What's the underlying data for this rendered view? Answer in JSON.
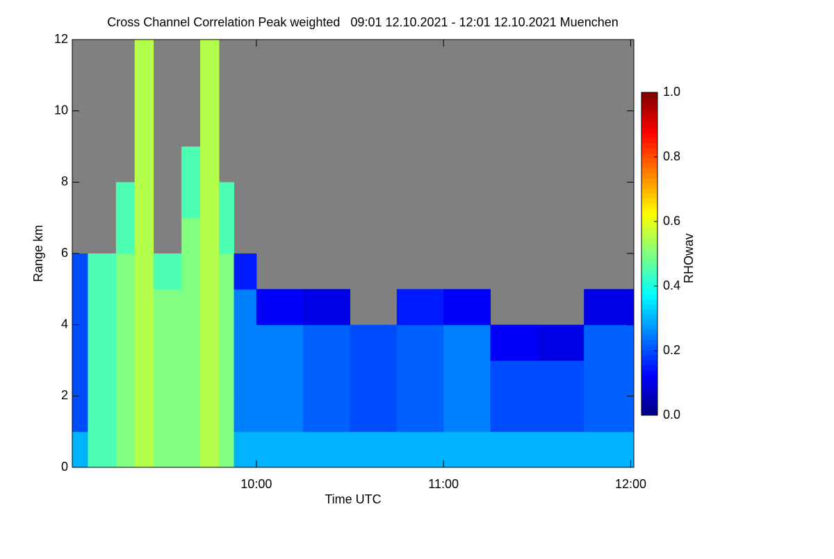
{
  "chart_data": {
    "type": "heatmap",
    "title": "Cross Channel Correlation Peak weighted   09:01 12.10.2021 - 12:01 12.10.2021 Muenchen",
    "x_label": "Time UTC",
    "y_label": "Range km",
    "colorbar_label": "RHOwav",
    "xlim": [
      9.0167,
      12.0167
    ],
    "xticks": [
      {
        "value": 10,
        "label": "10:00"
      },
      {
        "value": 11,
        "label": "11:00"
      },
      {
        "value": 12,
        "label": "12:00"
      }
    ],
    "ylim": [
      0,
      12
    ],
    "yticks": [
      0,
      2,
      4,
      6,
      8,
      10,
      12
    ],
    "clim": [
      0,
      1
    ],
    "cticks": [
      {
        "value": 0,
        "label": "0.0"
      },
      {
        "value": 0.2,
        "label": "0.2"
      },
      {
        "value": 0.4,
        "label": "0.4"
      },
      {
        "value": 0.6,
        "label": "0.6"
      },
      {
        "value": 0.8,
        "label": "0.8"
      },
      {
        "value": 1,
        "label": "1.0"
      }
    ],
    "colormap": "jet",
    "missing_color": "#808080",
    "x_edges": [
      9.0167,
      9.1,
      9.25,
      9.35,
      9.45,
      9.6,
      9.7,
      9.8,
      9.88,
      10,
      10.25,
      10.5,
      10.75,
      11,
      11.25,
      11.5,
      11.75,
      12.0167
    ],
    "y_edges": [
      0,
      1,
      2,
      3,
      4,
      5,
      6,
      7,
      8,
      9,
      10,
      11,
      12
    ],
    "z": [
      [
        0.3,
        0.45,
        0.5,
        0.55,
        0.5,
        0.5,
        0.55,
        0.5,
        0.3,
        0.3,
        0.3,
        0.3,
        0.3,
        0.3,
        0.3,
        0.3,
        0.3
      ],
      [
        0.2,
        0.45,
        0.5,
        0.55,
        0.5,
        0.5,
        0.55,
        0.5,
        0.25,
        0.25,
        0.22,
        0.2,
        0.22,
        0.25,
        0.2,
        0.2,
        0.22
      ],
      [
        0.2,
        0.45,
        0.5,
        0.55,
        0.5,
        0.5,
        0.55,
        0.5,
        0.25,
        0.25,
        0.22,
        0.2,
        0.22,
        0.25,
        0.2,
        0.2,
        0.22
      ],
      [
        0.2,
        0.45,
        0.5,
        0.55,
        0.5,
        0.5,
        0.55,
        0.5,
        0.25,
        0.25,
        0.22,
        0.2,
        0.22,
        0.25,
        0.12,
        0.1,
        0.22
      ],
      [
        0.2,
        0.45,
        0.5,
        0.55,
        0.5,
        0.5,
        0.55,
        0.5,
        0.25,
        0.12,
        0.1,
        null,
        0.15,
        0.12,
        null,
        null,
        0.1
      ],
      [
        0.2,
        0.45,
        0.5,
        0.55,
        0.45,
        0.5,
        0.55,
        0.5,
        0.15,
        null,
        null,
        null,
        null,
        null,
        null,
        null,
        null
      ],
      [
        null,
        null,
        0.45,
        0.55,
        null,
        0.5,
        0.55,
        0.45,
        null,
        null,
        null,
        null,
        null,
        null,
        null,
        null,
        null
      ],
      [
        null,
        null,
        0.45,
        0.55,
        null,
        0.45,
        0.55,
        0.45,
        null,
        null,
        null,
        null,
        null,
        null,
        null,
        null,
        null
      ],
      [
        null,
        null,
        null,
        0.55,
        null,
        0.45,
        0.55,
        null,
        null,
        null,
        null,
        null,
        null,
        null,
        null,
        null,
        null
      ],
      [
        null,
        null,
        null,
        0.55,
        null,
        null,
        0.55,
        null,
        null,
        null,
        null,
        null,
        null,
        null,
        null,
        null,
        null
      ],
      [
        null,
        null,
        null,
        0.55,
        null,
        null,
        0.55,
        null,
        null,
        null,
        null,
        null,
        null,
        null,
        null,
        null,
        null
      ],
      [
        null,
        null,
        null,
        0.55,
        null,
        null,
        0.55,
        null,
        null,
        null,
        null,
        null,
        null,
        null,
        null,
        null,
        null
      ]
    ]
  }
}
